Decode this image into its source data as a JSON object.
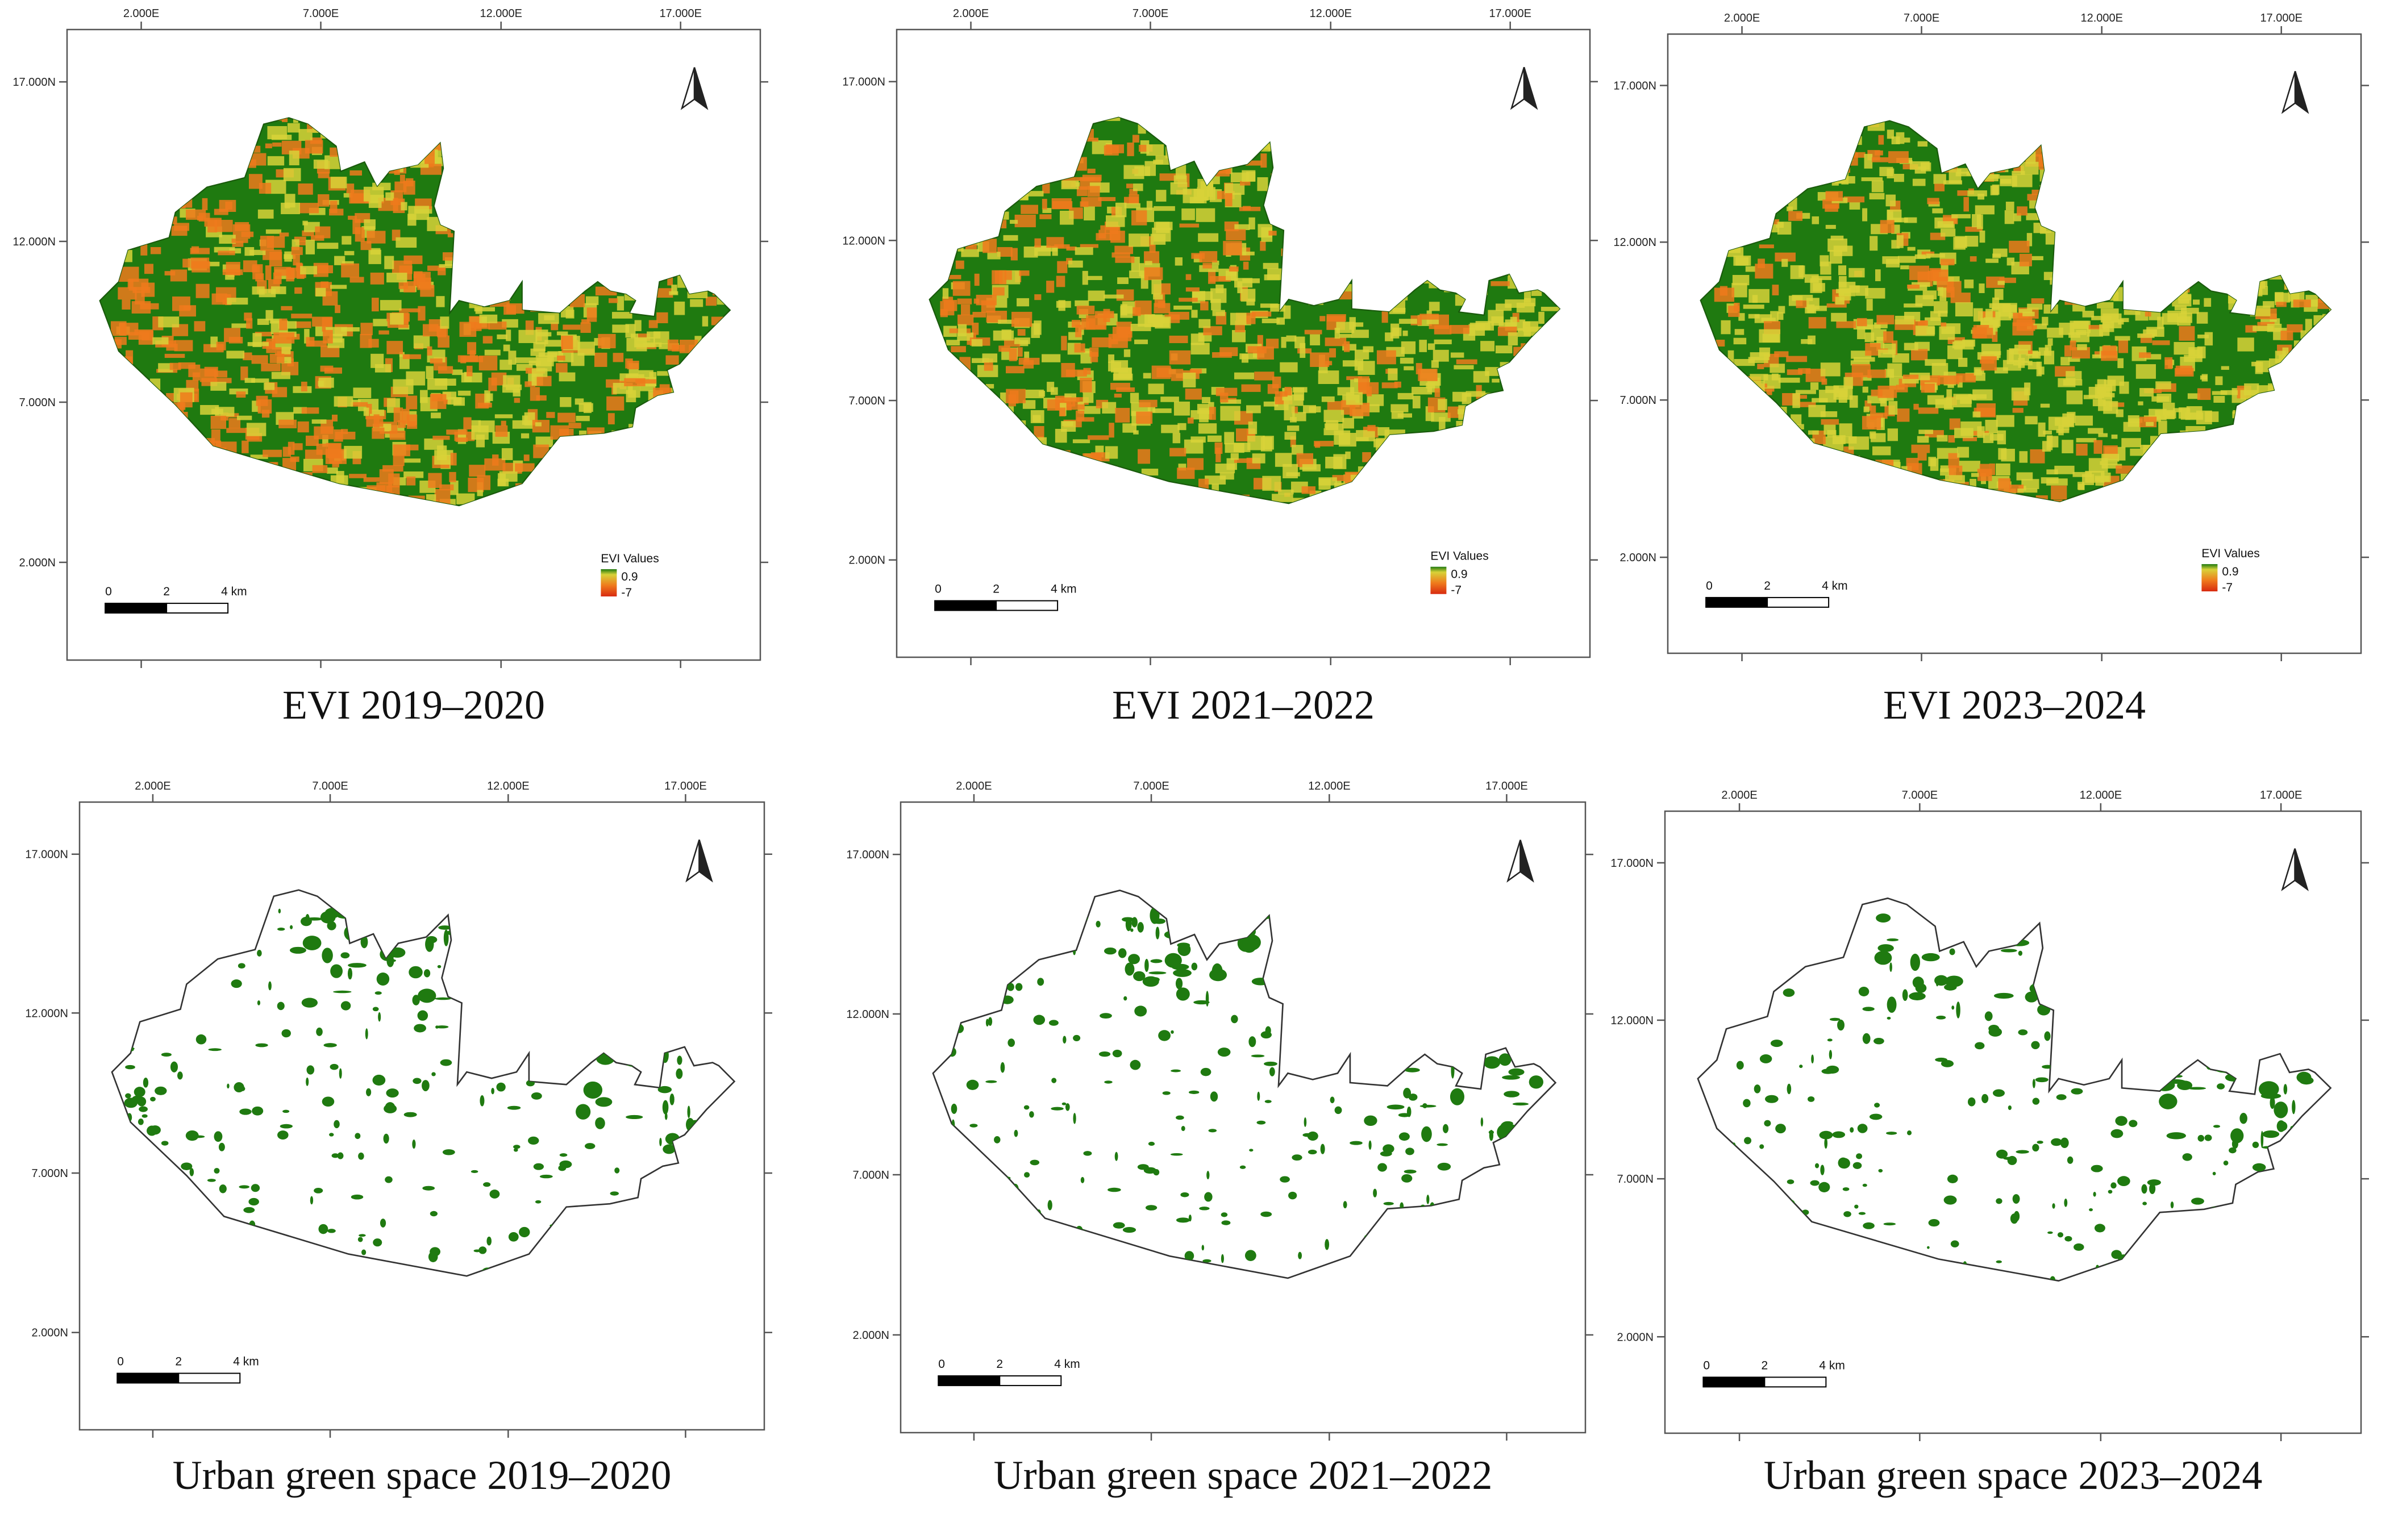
{
  "figure": {
    "panels": [
      {
        "type": "evi",
        "caption": "EVI 2019–2020"
      },
      {
        "type": "evi",
        "caption": "EVI 2021–2022"
      },
      {
        "type": "evi",
        "caption": "EVI 2023–2024"
      },
      {
        "type": "ugs",
        "caption": "Urban green space 2019–2020"
      },
      {
        "type": "ugs",
        "caption": "Urban green space 2021–2022"
      },
      {
        "type": "ugs",
        "caption": "Urban green space 2023–2024"
      }
    ],
    "x_ticks": [
      "2.000E",
      "7.000E",
      "12.000E",
      "17.000E"
    ],
    "y_ticks": [
      "17.000N",
      "12.000N",
      "7.000N",
      "2.000N"
    ],
    "scale_bar": {
      "labels": [
        "0",
        "2",
        "4 km"
      ]
    },
    "legend": {
      "title": "EVI Values",
      "max_label": "0.9",
      "min_label": "-7"
    },
    "north_arrow_icon": "north-arrow-icon",
    "colors": {
      "vegetation_green": "#1f7a10",
      "mid_yellow": "#d8d238",
      "low_orange": "#ef7a1c",
      "boundary_outline": "#333333",
      "frame": "#555555"
    }
  }
}
